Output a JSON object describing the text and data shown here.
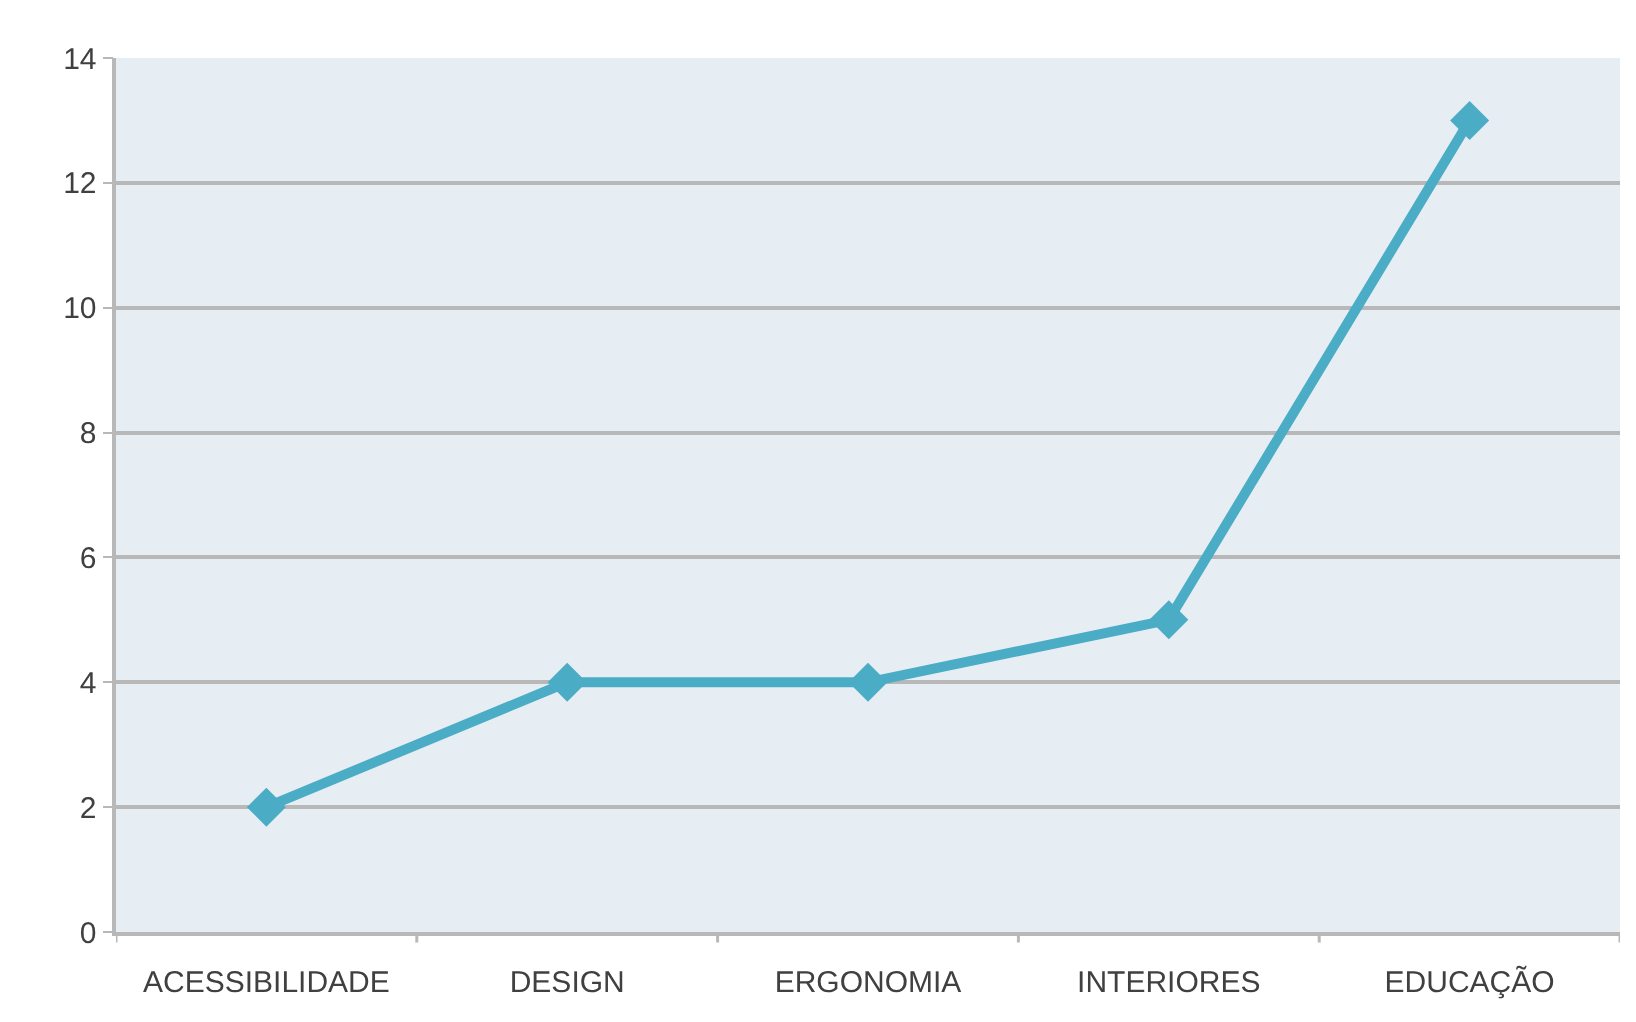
{
  "chart_data": {
    "type": "line",
    "categories": [
      "ACESSIBILIDADE",
      "DESIGN",
      "ERGONOMIA",
      "INTERIORES",
      "EDUCAÇÃO"
    ],
    "series": [
      {
        "color": "#4bacc6",
        "values": [
          2,
          4,
          4,
          5,
          13
        ]
      }
    ],
    "ylim": [
      0,
      14
    ],
    "yticks": [
      0,
      2,
      4,
      6,
      8,
      10,
      12,
      14
    ],
    "grid": "y",
    "marker": "diamond",
    "line_style": "solid"
  }
}
